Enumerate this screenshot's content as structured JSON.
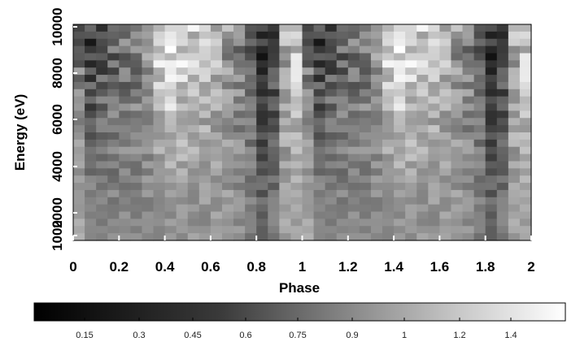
{
  "chart_data": {
    "type": "heatmap",
    "xlabel": "Phase",
    "ylabel": "Energy (eV)",
    "xlim": [
      0,
      2
    ],
    "ylim": [
      700,
      10000
    ],
    "x_ticks": [
      "0",
      "0.2",
      "0.4",
      "0.6",
      "0.8",
      "1",
      "1.2",
      "1.4",
      "1.6",
      "1.8",
      "2"
    ],
    "x_tick_values": [
      0,
      0.2,
      0.4,
      0.6,
      0.8,
      1.0,
      1.2,
      1.4,
      1.6,
      1.8,
      2.0
    ],
    "y_ticks": [
      "1000",
      "2000",
      "4000",
      "6000",
      "8000",
      "10000"
    ],
    "y_tick_values": [
      1000,
      2000,
      4000,
      6000,
      8000,
      10000
    ],
    "colormap": "grayscale",
    "color_low": "#000000",
    "color_high": "#ffffff",
    "colorbar": {
      "ticks": [
        "0.15",
        "0.3",
        "0.45",
        "0.6",
        "0.75",
        "0.9",
        "1",
        "1.2",
        "1.4"
      ],
      "min": 0.0,
      "max": 1.6
    },
    "phase_bins": 40,
    "profile_phase": [
      0.0,
      0.05,
      0.1,
      0.15,
      0.2,
      0.25,
      0.3,
      0.35,
      0.4,
      0.45,
      0.5,
      0.55,
      0.6,
      0.65,
      0.7,
      0.75,
      0.8,
      0.85,
      0.9,
      0.95,
      1.0
    ],
    "profile_high_energy": [
      1.0,
      0.45,
      0.35,
      0.75,
      0.55,
      0.9,
      0.6,
      1.1,
      1.55,
      1.35,
      1.3,
      1.25,
      1.1,
      1.15,
      0.75,
      0.85,
      0.3,
      0.2,
      0.6,
      1.5,
      1.0
    ],
    "profile_low_energy": [
      1.05,
      0.95,
      0.75,
      0.8,
      0.85,
      0.85,
      0.85,
      0.9,
      0.9,
      0.95,
      0.95,
      0.9,
      0.95,
      0.95,
      0.95,
      0.85,
      0.75,
      0.55,
      0.95,
      1.05,
      1.05
    ]
  }
}
